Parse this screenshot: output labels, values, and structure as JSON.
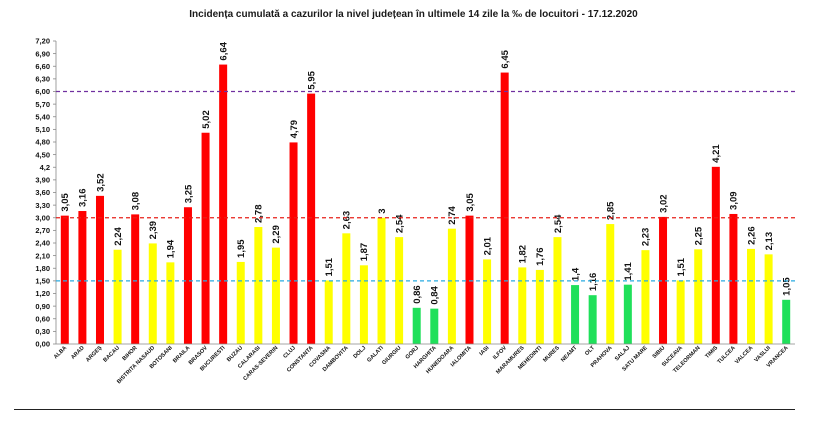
{
  "chart_data": {
    "type": "bar",
    "title": "Incidența cumulată a cazurilor la nivel județean în ultimele 14 zile la ‰ de locuitori - 17.12.2020",
    "xlabel": "",
    "ylabel": "",
    "ylim": [
      0,
      7.2
    ],
    "y_ticks": [
      "0,00",
      "0,30",
      "0,60",
      "0,90",
      "1,20",
      "1,50",
      "1,80",
      "2,10",
      "2,40",
      "2,70",
      "3,00",
      "3,30",
      "3,60",
      "3,90",
      "4,2",
      "4,50",
      "4,80",
      "5,10",
      "5,40",
      "5,70",
      "6,00",
      "6,30",
      "6,60",
      "6,90",
      "7,20"
    ],
    "grid": false,
    "legend": "none",
    "categories": [
      "ALBA",
      "ARAD",
      "ARGEȘ",
      "BACAU",
      "BIHOR",
      "BISTRITA NASAUD",
      "BOTOSANI",
      "BRAILA",
      "BRASOV",
      "BUCURESTI",
      "BUZAU",
      "CALARASI",
      "CARAS-SEVERIN",
      "CLUJ",
      "CONSTANTA",
      "COVASNA",
      "DAMBOVITA",
      "DOLJ",
      "GALATI",
      "GIURGIU",
      "GORJ",
      "HARGHITA",
      "HUNEDOARA",
      "IALOMITA",
      "IASI",
      "ILFOV",
      "MARAMURES",
      "MEHEDINTI",
      "MURES",
      "NEAMT",
      "OLT",
      "PRAHOVA",
      "SALAJ",
      "SATU MARE",
      "SIBIU",
      "SUCEAVA",
      "TELEORMAN",
      "TIMIS",
      "TULCEA",
      "VALCEA",
      "VASLUI",
      "VRANCEA"
    ],
    "values": [
      3.05,
      3.16,
      3.52,
      2.24,
      3.08,
      2.39,
      1.94,
      3.25,
      5.02,
      6.64,
      1.95,
      2.78,
      2.29,
      4.79,
      5.95,
      1.51,
      2.63,
      1.87,
      3,
      2.54,
      0.86,
      0.84,
      2.74,
      3.05,
      2.01,
      6.45,
      1.82,
      1.76,
      2.54,
      1.4,
      1.16,
      2.85,
      1.41,
      2.23,
      3.02,
      1.51,
      2.25,
      4.21,
      3.09,
      2.26,
      2.13,
      1.05
    ],
    "value_labels": [
      "3,05",
      "3,16",
      "3,52",
      "2,24",
      "3,08",
      "2,39",
      "1,94",
      "3,25",
      "5,02",
      "6,64",
      "1,95",
      "2,78",
      "2,29",
      "4,79",
      "5,95",
      "1,51",
      "2,63",
      "1,87",
      "3",
      "2,54",
      "0,86",
      "0,84",
      "2,74",
      "3,05",
      "2,01",
      "6,45",
      "1,82",
      "1,76",
      "2,54",
      "1,4",
      "1,16",
      "2,85",
      "1,41",
      "2,23",
      "3,02",
      "1,51",
      "2,25",
      "4,21",
      "3,09",
      "2,26",
      "2,13",
      "1,05"
    ],
    "thresholds": [
      {
        "value": 1.5,
        "color": "#29abe2"
      },
      {
        "value": 3.0,
        "color": "#e8201a"
      },
      {
        "value": 6.0,
        "color": "#7030a0"
      }
    ],
    "colors": {
      "low": "#1fe05a",
      "mid": "#ffff00",
      "high": "#ff0000"
    }
  }
}
